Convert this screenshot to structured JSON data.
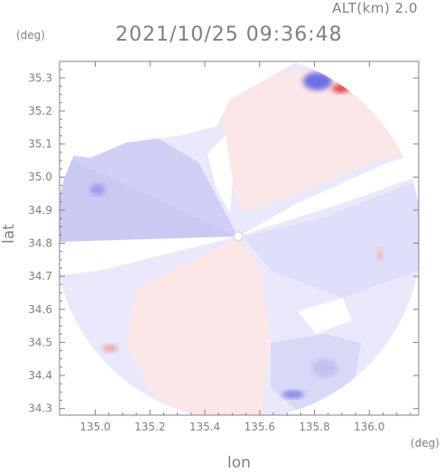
{
  "header": {
    "altitude": "ALT(km)  2.0",
    "timestamp": "2021/10/25 09:36:48"
  },
  "colors": {
    "frame": "#808080",
    "positive": "#f4a8a8",
    "negative": "#a8a8f0",
    "neutral": "#e8e8fb"
  },
  "chart_data": {
    "type": "heatmap",
    "title": "",
    "xlabel": "lon",
    "ylabel": "lat",
    "x_unit": "(deg)",
    "y_unit": "(deg)",
    "xlim": [
      134.87,
      136.18
    ],
    "ylim": [
      34.28,
      35.35
    ],
    "x_ticks": [
      135.0,
      135.2,
      135.4,
      135.6,
      135.8,
      136.0
    ],
    "x_tick_labels": [
      "135.0",
      "135.2",
      "135.4",
      "135.6",
      "135.8",
      "136.0"
    ],
    "y_ticks": [
      34.3,
      34.4,
      34.5,
      34.6,
      34.7,
      34.8,
      34.9,
      35.0,
      35.1,
      35.2,
      35.3
    ],
    "y_tick_labels": [
      "34.3",
      "34.4",
      "34.5",
      "34.6",
      "34.7",
      "34.8",
      "34.9",
      "35.0",
      "35.1",
      "35.2",
      "35.3"
    ],
    "radar_center": [
      135.52,
      34.81
    ],
    "grid": false,
    "legend": "none"
  }
}
